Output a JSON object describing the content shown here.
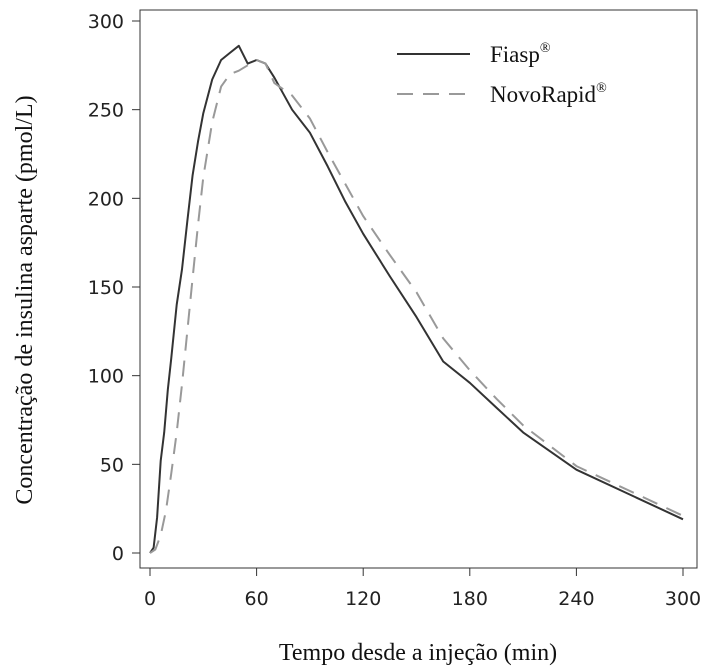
{
  "chart_data": {
    "type": "line",
    "title": "",
    "xlabel": "Tempo desde a injeção (min)",
    "ylabel": "Concentração de insulina asparte (pmol/L)",
    "xlim": [
      0,
      300
    ],
    "ylim": [
      0,
      300
    ],
    "xticks": [
      "0",
      "60",
      "120",
      "180",
      "240",
      "300"
    ],
    "yticks": [
      "0",
      "50",
      "100",
      "150",
      "200",
      "250",
      "300"
    ],
    "grid": false,
    "legend_position": "top-right",
    "series": [
      {
        "name": "Fiasp",
        "name_sup": "®",
        "color": "#333333",
        "dash": "solid",
        "x": [
          0,
          2,
          4,
          6,
          8,
          10,
          12,
          15,
          18,
          21,
          24,
          27,
          30,
          35,
          40,
          45,
          50,
          55,
          60,
          65,
          70,
          80,
          90,
          100,
          110,
          120,
          135,
          150,
          165,
          180,
          195,
          210,
          240,
          270,
          300
        ],
        "y": [
          0,
          3,
          20,
          52,
          68,
          92,
          110,
          140,
          160,
          187,
          213,
          232,
          248,
          267,
          278,
          282,
          286,
          276,
          278,
          276,
          268,
          250,
          237,
          218,
          198,
          180,
          156,
          133,
          108,
          96,
          82,
          68,
          47,
          33,
          19
        ]
      },
      {
        "name": "NovoRapid",
        "name_sup": "®",
        "color": "#999999",
        "dash": "dashed",
        "x": [
          0,
          3,
          6,
          9,
          12,
          15,
          18,
          21,
          24,
          27,
          30,
          35,
          40,
          45,
          50,
          55,
          60,
          65,
          70,
          80,
          90,
          100,
          110,
          120,
          135,
          150,
          165,
          180,
          195,
          210,
          240,
          270,
          300
        ],
        "y": [
          0,
          2,
          10,
          24,
          45,
          68,
          95,
          125,
          155,
          185,
          212,
          243,
          263,
          270,
          272,
          275,
          278,
          276,
          265,
          258,
          245,
          226,
          208,
          190,
          168,
          147,
          121,
          103,
          87,
          72,
          49,
          35,
          21
        ]
      }
    ]
  }
}
